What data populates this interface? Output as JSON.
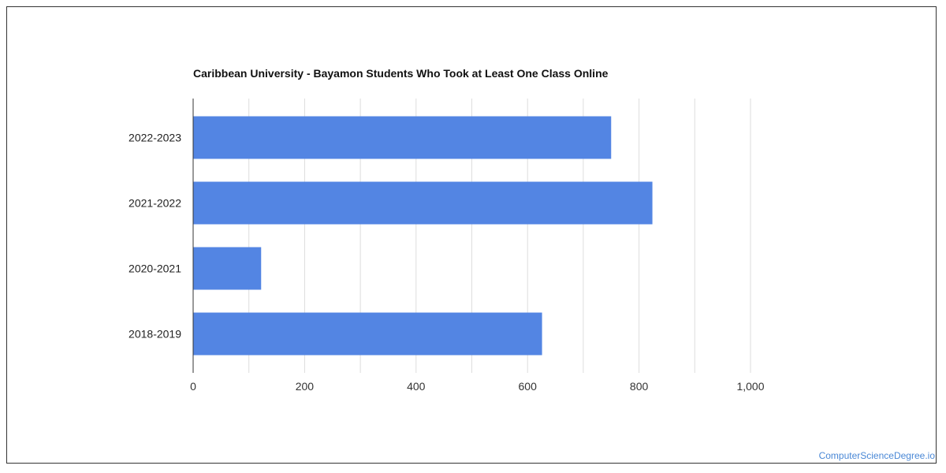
{
  "chart_data": {
    "type": "bar",
    "orientation": "horizontal",
    "title": "Caribbean University - Bayamon Students Who Took at Least One Class Online",
    "categories": [
      "2022-2023",
      "2021-2022",
      "2020-2021",
      "2018-2019"
    ],
    "values": [
      750,
      824,
      122,
      626
    ],
    "xlim": [
      0,
      1000
    ],
    "x_ticks": [
      "0",
      "200",
      "400",
      "600",
      "800",
      "1,000"
    ],
    "grid": true,
    "bar_color": "#5385e3"
  },
  "watermark": "ComputerScienceDegree.io"
}
